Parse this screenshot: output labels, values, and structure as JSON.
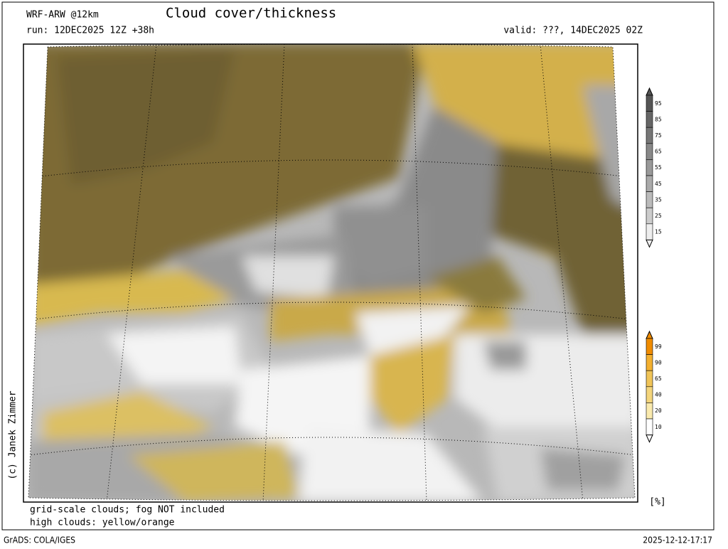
{
  "header": {
    "model": "WRF-ARW @12km",
    "title": "Cloud cover/thickness",
    "run": "run: 12DEC2025 12Z +38h",
    "valid": "valid: ???, 14DEC2025 02Z"
  },
  "legend": {
    "total_cloud_ticks": [
      95,
      85,
      75,
      65,
      55,
      45,
      35,
      25,
      15
    ],
    "high_cloud_ticks": [
      99,
      90,
      65,
      40,
      20,
      10
    ],
    "unit": "[%]"
  },
  "notes": [
    "grid-scale clouds; fog NOT included",
    "high clouds: yellow/orange"
  ],
  "credit": "(c) Janek Zimmer",
  "footer": {
    "software": "GrADS: COLA/IGES",
    "timestamp": "2025-12-12-17:17"
  }
}
